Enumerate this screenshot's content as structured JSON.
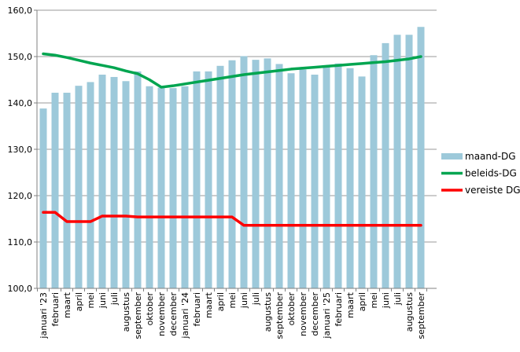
{
  "chart_data": {
    "type": "bar",
    "combo": "bars with two overlay lines",
    "title": "",
    "xlabel": "",
    "ylabel": "",
    "grid": true,
    "legend_position": "right",
    "background_color": "#ffffff",
    "grid_color": "#999999",
    "axis_color": "#808080",
    "ylim": [
      100,
      160
    ],
    "y_axis": {
      "min": 100,
      "max": 160,
      "step": 10,
      "tick_labels": [
        "160,0",
        "150,0",
        "140,0",
        "130,0",
        "120,0",
        "110,0",
        "100,0"
      ]
    },
    "categories": [
      "januari '23",
      "februari",
      "maart",
      "april",
      "mei",
      "juni",
      "juli",
      "augustus",
      "september",
      "oktober",
      "november",
      "december",
      "januari '24",
      "februari",
      "maart",
      "april",
      "mei",
      "juni",
      "juli",
      "augustus",
      "september",
      "oktober",
      "november",
      "december",
      "januari '25",
      "februari",
      "maart",
      "april",
      "mei",
      "juni",
      "juli",
      "augustus",
      "september"
    ],
    "series": [
      {
        "name": "maand-DG",
        "type": "bar",
        "color": "#9dc9da",
        "values": [
          138.8,
          142.2,
          142.2,
          143.7,
          144.5,
          146.1,
          145.6,
          144.7,
          146.8,
          143.6,
          143.3,
          143.2,
          143.6,
          146.8,
          146.8,
          148.0,
          149.2,
          150.1,
          149.3,
          149.6,
          148.4,
          146.4,
          147.2,
          146.1,
          148.1,
          148.5,
          147.5,
          145.7,
          150.3,
          152.9,
          154.7,
          154.7,
          156.4
        ]
      },
      {
        "name": "beleids-DG",
        "type": "line",
        "color": "#00a550",
        "values": [
          150.6,
          150.3,
          149.8,
          149.2,
          148.6,
          148.1,
          147.6,
          146.9,
          146.3,
          145.0,
          143.4,
          143.7,
          144.1,
          144.5,
          144.9,
          145.3,
          145.7,
          146.1,
          146.4,
          146.7,
          147.0,
          147.3,
          147.5,
          147.7,
          147.9,
          148.1,
          148.3,
          148.5,
          148.7,
          148.9,
          149.2,
          149.5,
          150.0
        ]
      },
      {
        "name": "vereiste DG",
        "type": "line",
        "color": "#fe0000",
        "values": [
          116.4,
          116.4,
          114.4,
          114.4,
          114.4,
          115.6,
          115.6,
          115.6,
          115.4,
          115.4,
          115.4,
          115.4,
          115.4,
          115.4,
          115.4,
          115.4,
          115.4,
          113.6,
          113.6,
          113.6,
          113.6,
          113.6,
          113.6,
          113.6,
          113.6,
          113.6,
          113.6,
          113.6,
          113.6,
          113.6,
          113.6,
          113.6,
          113.6
        ]
      }
    ]
  }
}
